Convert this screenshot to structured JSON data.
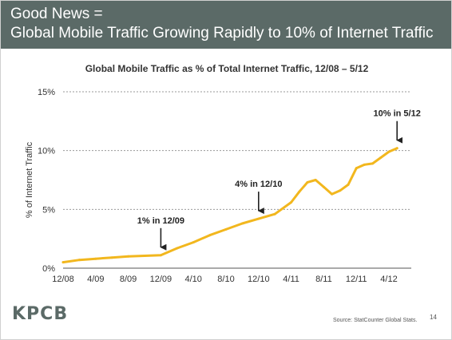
{
  "header": {
    "line1": "Good News =",
    "line2": "Global Mobile Traffic Growing Rapidly to 10% of Internet Traffic"
  },
  "chart_data": {
    "type": "line",
    "title": "Global Mobile Traffic as % of Total Internet Traffic, 12/08 – 5/12",
    "xlabel": "",
    "ylabel": "% of Internet Traffic",
    "ylim": [
      0,
      15
    ],
    "y_ticks": [
      "0%",
      "5%",
      "10%",
      "15%"
    ],
    "x_ticks": [
      "12/08",
      "4/09",
      "8/09",
      "12/09",
      "4/10",
      "8/10",
      "12/10",
      "4/11",
      "8/11",
      "12/11",
      "4/12"
    ],
    "grid": true,
    "series": [
      {
        "color": "#f2b71e",
        "x": [
          "12/08",
          "2/09",
          "4/09",
          "6/09",
          "8/09",
          "10/09",
          "12/09",
          "2/10",
          "4/10",
          "6/10",
          "8/10",
          "10/10",
          "12/10",
          "2/11",
          "4/11",
          "5/11",
          "6/11",
          "7/11",
          "8/11",
          "9/11",
          "10/11",
          "11/11",
          "12/11",
          "1/12",
          "2/12",
          "3/12",
          "4/12",
          "5/12"
        ],
        "values": [
          0.5,
          0.7,
          0.8,
          0.9,
          1.0,
          1.05,
          1.1,
          1.7,
          2.2,
          2.8,
          3.3,
          3.8,
          4.2,
          4.6,
          5.6,
          6.5,
          7.3,
          7.5,
          6.9,
          6.3,
          6.6,
          7.1,
          8.5,
          8.8,
          8.9,
          9.4,
          9.9,
          10.2
        ]
      }
    ],
    "annotations": [
      {
        "text": "1% in 12/09",
        "x": "12/09",
        "y": 1.1
      },
      {
        "text": "4% in 12/10",
        "x": "12/10",
        "y": 4.2
      },
      {
        "text": "10% in 5/12",
        "x": "5/12",
        "y": 10.2
      }
    ]
  },
  "footer": {
    "logo": "KPCB",
    "source": "Source: StatCounter Global Stats.",
    "page_number": "14"
  }
}
